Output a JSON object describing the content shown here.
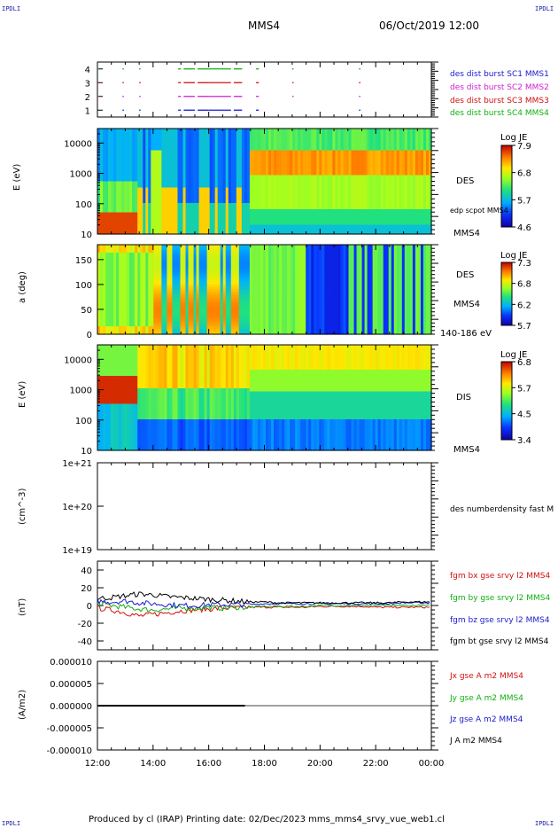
{
  "header": {
    "corner_left": "IPDLI",
    "corner_right": "IPDLI",
    "spacecraft": "MMS4",
    "datetime": "06/Oct/2019 12:00"
  },
  "footer": {
    "text": "Produced by cl (IRAP)   Printing date: 02/Dec/2023   mms_mms4_srvy_vue_web1.cl",
    "corner_left": "IPDLI",
    "corner_right": "IPDLI"
  },
  "time_axis": {
    "ticks": [
      "12:00",
      "14:00",
      "16:00",
      "18:00",
      "20:00",
      "22:00",
      "00:00"
    ]
  },
  "panels": {
    "burst": {
      "yticks": [
        "1",
        "2",
        "3",
        "4"
      ],
      "legend": [
        {
          "text": "des dist burst SC1 MMS1",
          "color": "#1a1ad0"
        },
        {
          "text": "des dist burst SC2 MMS2",
          "color": "#d020d0"
        },
        {
          "text": "des dist burst SC3 MMS3",
          "color": "#d01010"
        },
        {
          "text": "des dist burst SC4 MMS4",
          "color": "#10b010"
        }
      ]
    },
    "des_energy": {
      "ylabel": "E (eV)",
      "yticks": [
        "10",
        "100",
        "1000",
        "10000"
      ],
      "label": "DES",
      "sublabel": "edp scpot MMS4",
      "bottom_label": "MMS4",
      "colorbar": {
        "title": "Log JE",
        "ticks": [
          "7.9",
          "6.8",
          "5.7",
          "4.6"
        ]
      }
    },
    "des_pitch": {
      "ylabel": "a (deg)",
      "yticks": [
        "0",
        "50",
        "100",
        "150"
      ],
      "label": "DES",
      "sublabel": "MMS4",
      "bottom_label": "140-186 eV",
      "colorbar": {
        "title": "Log JE",
        "ticks": [
          "7.3",
          "6.8",
          "6.2",
          "5.7"
        ]
      }
    },
    "dis_energy": {
      "ylabel": "E (eV)",
      "yticks": [
        "10",
        "100",
        "1000",
        "10000"
      ],
      "label": "DIS",
      "bottom_label": "MMS4",
      "colorbar": {
        "title": "Log JE",
        "ticks": [
          "6.8",
          "5.7",
          "4.5",
          "3.4"
        ]
      }
    },
    "density": {
      "ylabel": "(cm^-3)",
      "yticks": [
        "1e+19",
        "1e+20",
        "1e+21"
      ],
      "legend": "des numberdensity fast M"
    },
    "bfield": {
      "ylabel": "(nT)",
      "yticks": [
        "-40",
        "-20",
        "0",
        "20",
        "40"
      ],
      "legend": [
        {
          "text": "fgm bx gse srvy l2 MMS4",
          "color": "#d01010"
        },
        {
          "text": "fgm by gse srvy l2 MMS4",
          "color": "#10b010"
        },
        {
          "text": "fgm bz gse srvy l2 MMS4",
          "color": "#1a1ad0"
        },
        {
          "text": "fgm bt gse srvy l2 MMS4",
          "color": "#000000"
        }
      ]
    },
    "current": {
      "ylabel": "(A/m2)",
      "yticks": [
        "-0.000010",
        "-0.000005",
        "0.000000",
        "0.000005",
        "0.000010"
      ],
      "legend": [
        {
          "text": "Jx gse A m2 MMS4",
          "color": "#d01010"
        },
        {
          "text": "Jy gse A m2 MMS4",
          "color": "#10b010"
        },
        {
          "text": "Jz gse A m2 MMS4",
          "color": "#1a1ad0"
        },
        {
          "text": "J A m2 MMS4",
          "color": "#000000"
        }
      ]
    }
  },
  "chart_data": [
    {
      "type": "scatter",
      "panel": "burst",
      "x_unit": "hours since 12:00",
      "series": [
        {
          "name": "des dist burst SC1 MMS1",
          "y": 1,
          "intervals": [
            [
              0.9,
              0.95
            ],
            [
              1.5,
              1.55
            ],
            [
              2.9,
              3.0
            ],
            [
              3.1,
              3.5
            ],
            [
              3.6,
              4.0
            ],
            [
              4.0,
              4.8
            ],
            [
              4.9,
              5.2
            ],
            [
              5.7,
              5.8
            ],
            [
              9.4,
              9.45
            ]
          ]
        },
        {
          "name": "des dist burst SC2 MMS2",
          "y": 2,
          "intervals": [
            [
              0,
              0.05
            ],
            [
              0.9,
              0.95
            ],
            [
              1.5,
              1.55
            ],
            [
              2.9,
              3.0
            ],
            [
              3.1,
              3.5
            ],
            [
              3.6,
              4.0
            ],
            [
              4.0,
              4.8
            ],
            [
              4.9,
              5.2
            ],
            [
              5.7,
              5.8
            ],
            [
              7.0,
              7.05
            ],
            [
              9.4,
              9.45
            ]
          ]
        },
        {
          "name": "des dist burst SC3 MMS3",
          "y": 3,
          "intervals": [
            [
              0,
              0.05
            ],
            [
              0.9,
              0.95
            ],
            [
              1.5,
              1.55
            ],
            [
              2.9,
              3.0
            ],
            [
              3.1,
              3.5
            ],
            [
              3.6,
              4.0
            ],
            [
              4.0,
              4.8
            ],
            [
              4.9,
              5.2
            ],
            [
              5.7,
              5.8
            ],
            [
              7.0,
              7.05
            ],
            [
              9.4,
              9.45
            ]
          ]
        },
        {
          "name": "des dist burst SC4 MMS4",
          "y": 4,
          "intervals": [
            [
              0,
              0.05
            ],
            [
              0.9,
              0.95
            ],
            [
              1.5,
              1.55
            ],
            [
              2.9,
              3.0
            ],
            [
              3.1,
              3.5
            ],
            [
              3.6,
              4.0
            ],
            [
              4.0,
              4.8
            ],
            [
              4.9,
              5.2
            ],
            [
              5.7,
              5.8
            ],
            [
              7.0,
              7.05
            ],
            [
              9.4,
              9.45
            ]
          ]
        }
      ]
    },
    {
      "type": "heatmap",
      "panel": "des_energy",
      "ylim": [
        10,
        30000
      ],
      "yscale": "log",
      "zlim": [
        4.6,
        7.9
      ]
    },
    {
      "type": "heatmap",
      "panel": "des_pitch",
      "ylim": [
        0,
        180
      ],
      "zlim": [
        5.7,
        7.3
      ]
    },
    {
      "type": "heatmap",
      "panel": "dis_energy",
      "ylim": [
        10,
        30000
      ],
      "yscale": "log",
      "zlim": [
        3.4,
        6.8
      ]
    },
    {
      "type": "line",
      "panel": "bfield",
      "ylim": [
        -50,
        50
      ],
      "x": [
        0,
        0.5,
        1,
        1.5,
        2,
        2.5,
        3,
        3.5,
        4,
        4.5,
        5,
        5.5,
        6,
        6.5,
        7,
        7.5,
        8,
        8.5,
        9,
        9.5,
        10,
        10.5,
        11,
        11.5,
        12
      ],
      "series": [
        {
          "name": "fgm bx gse srvy l2 MMS4",
          "values": [
            -3,
            -5,
            -8,
            -12,
            -10,
            -8,
            -6,
            -5,
            -4,
            -3,
            -3,
            -2,
            -2,
            -2,
            -2,
            -2,
            -1,
            -1,
            -1,
            -1,
            -2,
            -2,
            -2,
            -2,
            -2
          ]
        },
        {
          "name": "fgm by gse srvy l2 MMS4",
          "values": [
            2,
            0,
            -2,
            -4,
            -5,
            -4,
            -3,
            -3,
            -2,
            -3,
            -2,
            -2,
            -1,
            -1,
            -1,
            -1,
            0,
            0,
            0,
            0,
            0,
            0,
            0,
            0,
            0
          ]
        },
        {
          "name": "fgm bz gse srvy l2 MMS4",
          "values": [
            5,
            4,
            5,
            3,
            2,
            1,
            0,
            0,
            1,
            1,
            1,
            1,
            2,
            2,
            2,
            2,
            2,
            2,
            2,
            2,
            2,
            2,
            3,
            3,
            3
          ]
        },
        {
          "name": "fgm bt gse srvy l2 MMS4",
          "values": [
            8,
            9,
            11,
            13,
            12,
            10,
            9,
            8,
            7,
            6,
            5,
            4,
            4,
            3,
            3,
            3,
            3,
            3,
            3,
            3,
            3,
            3,
            4,
            4,
            4
          ]
        }
      ]
    },
    {
      "type": "line",
      "panel": "current",
      "ylim": [
        -1e-05,
        1e-05
      ],
      "x": [
        0,
        5.3
      ],
      "series": [
        {
          "name": "J A m2 MMS4",
          "values": [
            0,
            0
          ]
        }
      ]
    }
  ]
}
